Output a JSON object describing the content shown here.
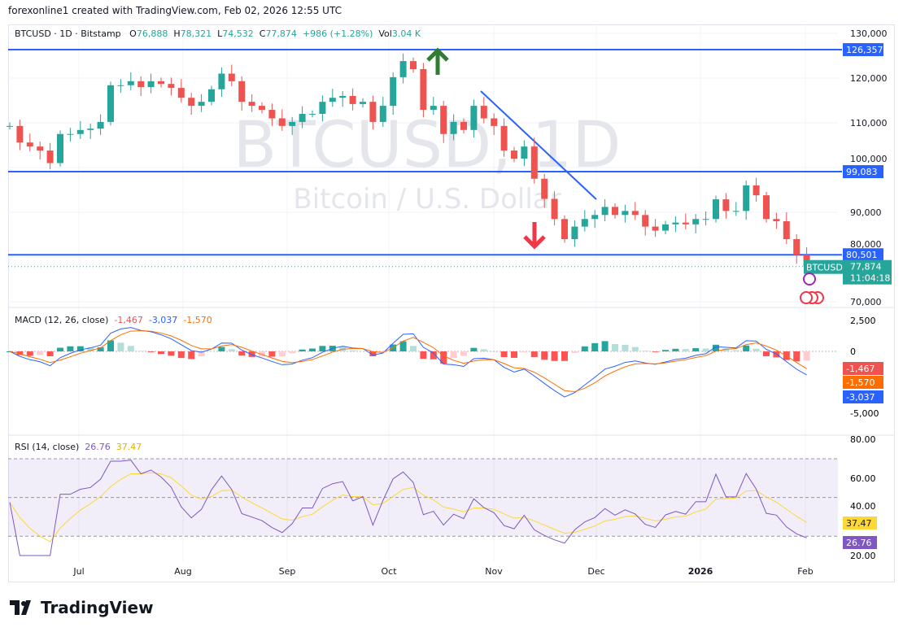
{
  "credit": "forexonline1 created with TradingView.com, Feb 02, 2026 12:55 UTC",
  "legend": {
    "symbol": "BTCUSD · 1D · Bitstamp",
    "o_label": "O",
    "o": "76,888",
    "h_label": "H",
    "h": "78,321",
    "l_label": "L",
    "l": "74,532",
    "c_label": "C",
    "c": "77,874",
    "change": "+986 (+1.28%)",
    "vol_label": "Vol",
    "vol": "3.04 K"
  },
  "watermark": {
    "title": "BTCUSD, 1D",
    "subtitle": "Bitcoin / U.S. Dollar"
  },
  "colors": {
    "up": "#26a69a",
    "down": "#ef5350",
    "line": "#2962ff",
    "macd": "#2962ff",
    "signal": "#ff6d00",
    "rsi": "#7e57c2",
    "rsi_ma": "#fdd835"
  },
  "levels": [
    {
      "label": "126,357",
      "value": 126357
    },
    {
      "label": "99,083",
      "value": 99083
    },
    {
      "label": "80,501",
      "value": 80501
    }
  ],
  "last_price": {
    "symbol": "BTCUSD",
    "price": "77,874",
    "countdown": "11:04:18",
    "value": 77874
  },
  "annotations": {
    "up_arrow": "arrow-up",
    "down_arrow": "arrow-down",
    "trendline": {
      "from": [
        "2025-10-27",
        117000
      ],
      "to": [
        "2025-12-01",
        92500
      ]
    }
  },
  "chart_data": [
    {
      "type": "candlestick",
      "title": "BTCUSD · 1D · Bitstamp",
      "ylim": [
        68000,
        132000
      ],
      "y_ticks": [
        "130,000",
        "120,000",
        "110,000",
        "100,000",
        "90,000",
        "80,000",
        "70,000"
      ],
      "x_ticks": [
        "Jul",
        "Aug",
        "Sep",
        "Oct",
        "Nov",
        "Dec",
        "2026",
        "Feb"
      ],
      "x": [
        "06-10",
        "06-13",
        "06-16",
        "06-19",
        "06-22",
        "06-25",
        "06-28",
        "07-01",
        "07-04",
        "07-07",
        "07-10",
        "07-13",
        "07-16",
        "07-19",
        "07-22",
        "07-25",
        "07-28",
        "07-31",
        "08-03",
        "08-06",
        "08-09",
        "08-12",
        "08-15",
        "08-18",
        "08-21",
        "08-24",
        "08-27",
        "08-30",
        "09-02",
        "09-05",
        "09-08",
        "09-11",
        "09-14",
        "09-17",
        "09-20",
        "09-23",
        "09-26",
        "09-29",
        "10-02",
        "10-05",
        "10-08",
        "10-11",
        "10-14",
        "10-17",
        "10-20",
        "10-23",
        "10-26",
        "10-29",
        "11-01",
        "11-04",
        "11-07",
        "11-10",
        "11-13",
        "11-16",
        "11-19",
        "11-22",
        "11-25",
        "11-28",
        "12-01",
        "12-04",
        "12-07",
        "12-10",
        "12-13",
        "12-16",
        "12-19",
        "12-22",
        "12-25",
        "12-28",
        "12-31",
        "01-03",
        "01-06",
        "01-09",
        "01-12",
        "01-15",
        "01-18",
        "01-21",
        "01-24",
        "01-27",
        "01-30",
        "02-02"
      ],
      "close": [
        109300,
        105600,
        104700,
        103800,
        101000,
        107500,
        107500,
        108400,
        108700,
        110200,
        118400,
        118400,
        119300,
        118000,
        119300,
        118700,
        117800,
        115600,
        113800,
        114700,
        117500,
        121000,
        119300,
        114700,
        113800,
        112900,
        111000,
        109300,
        110200,
        112000,
        112000,
        114700,
        115600,
        116000,
        114200,
        114700,
        110200,
        113800,
        120200,
        123800,
        122000,
        112900,
        113800,
        107500,
        110200,
        108400,
        113800,
        111000,
        109300,
        103800,
        102000,
        104700,
        97500,
        93000,
        88500,
        84000,
        86800,
        88500,
        89400,
        91200,
        89400,
        90300,
        89400,
        86800,
        85900,
        87300,
        87700,
        87300,
        88500,
        88500,
        92900,
        90300,
        90300,
        96000,
        93800,
        88500,
        88000,
        84000,
        80500,
        77874
      ]
    },
    {
      "type": "line",
      "title": "MACD (12, 26, close)",
      "values_label": [
        "-1,467",
        "-3,037",
        "-1,570"
      ],
      "y_ticks": [
        "2,500",
        "0",
        "-5,000"
      ],
      "last": {
        "histogram": "-1,467",
        "signal": "-1,570",
        "macd": "-3,037"
      }
    },
    {
      "type": "line",
      "title": "RSI (14, close)",
      "values_label": [
        "26.76",
        "37.47"
      ],
      "y_ticks": [
        "80.00",
        "60.00",
        "40.00",
        "20.00"
      ],
      "last": {
        "rsi": "26.76",
        "ma": "37.47"
      },
      "bands": [
        30,
        70
      ]
    }
  ],
  "brand": "TradingView"
}
